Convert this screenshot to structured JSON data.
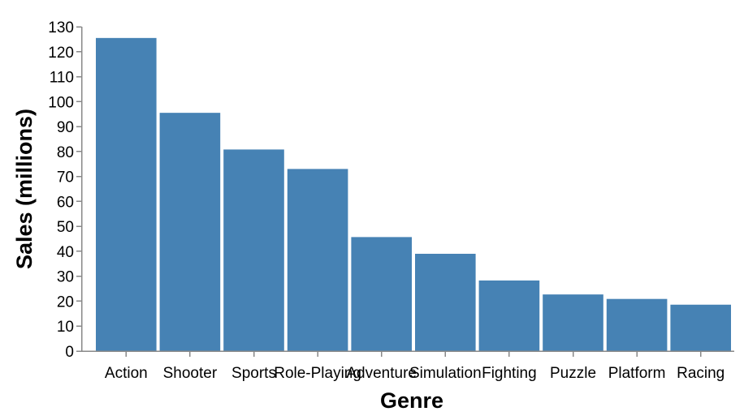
{
  "chart_data": {
    "type": "bar",
    "categories": [
      "Action",
      "Shooter",
      "Sports",
      "Role-Playing",
      "Adventure",
      "Simulation",
      "Fighting",
      "Puzzle",
      "Platform",
      "Racing"
    ],
    "values": [
      125.5,
      95.5,
      80.8,
      73.0,
      45.7,
      39.0,
      28.3,
      22.7,
      20.9,
      18.6
    ],
    "xlabel": "Genre",
    "ylabel": "Sales (millions)",
    "ylim": [
      0,
      130
    ],
    "yticks": [
      0,
      10,
      20,
      30,
      40,
      50,
      60,
      70,
      80,
      90,
      100,
      110,
      120,
      130
    ],
    "grid": false,
    "bar_color": "#4682b4",
    "axis_color": "#888888"
  }
}
